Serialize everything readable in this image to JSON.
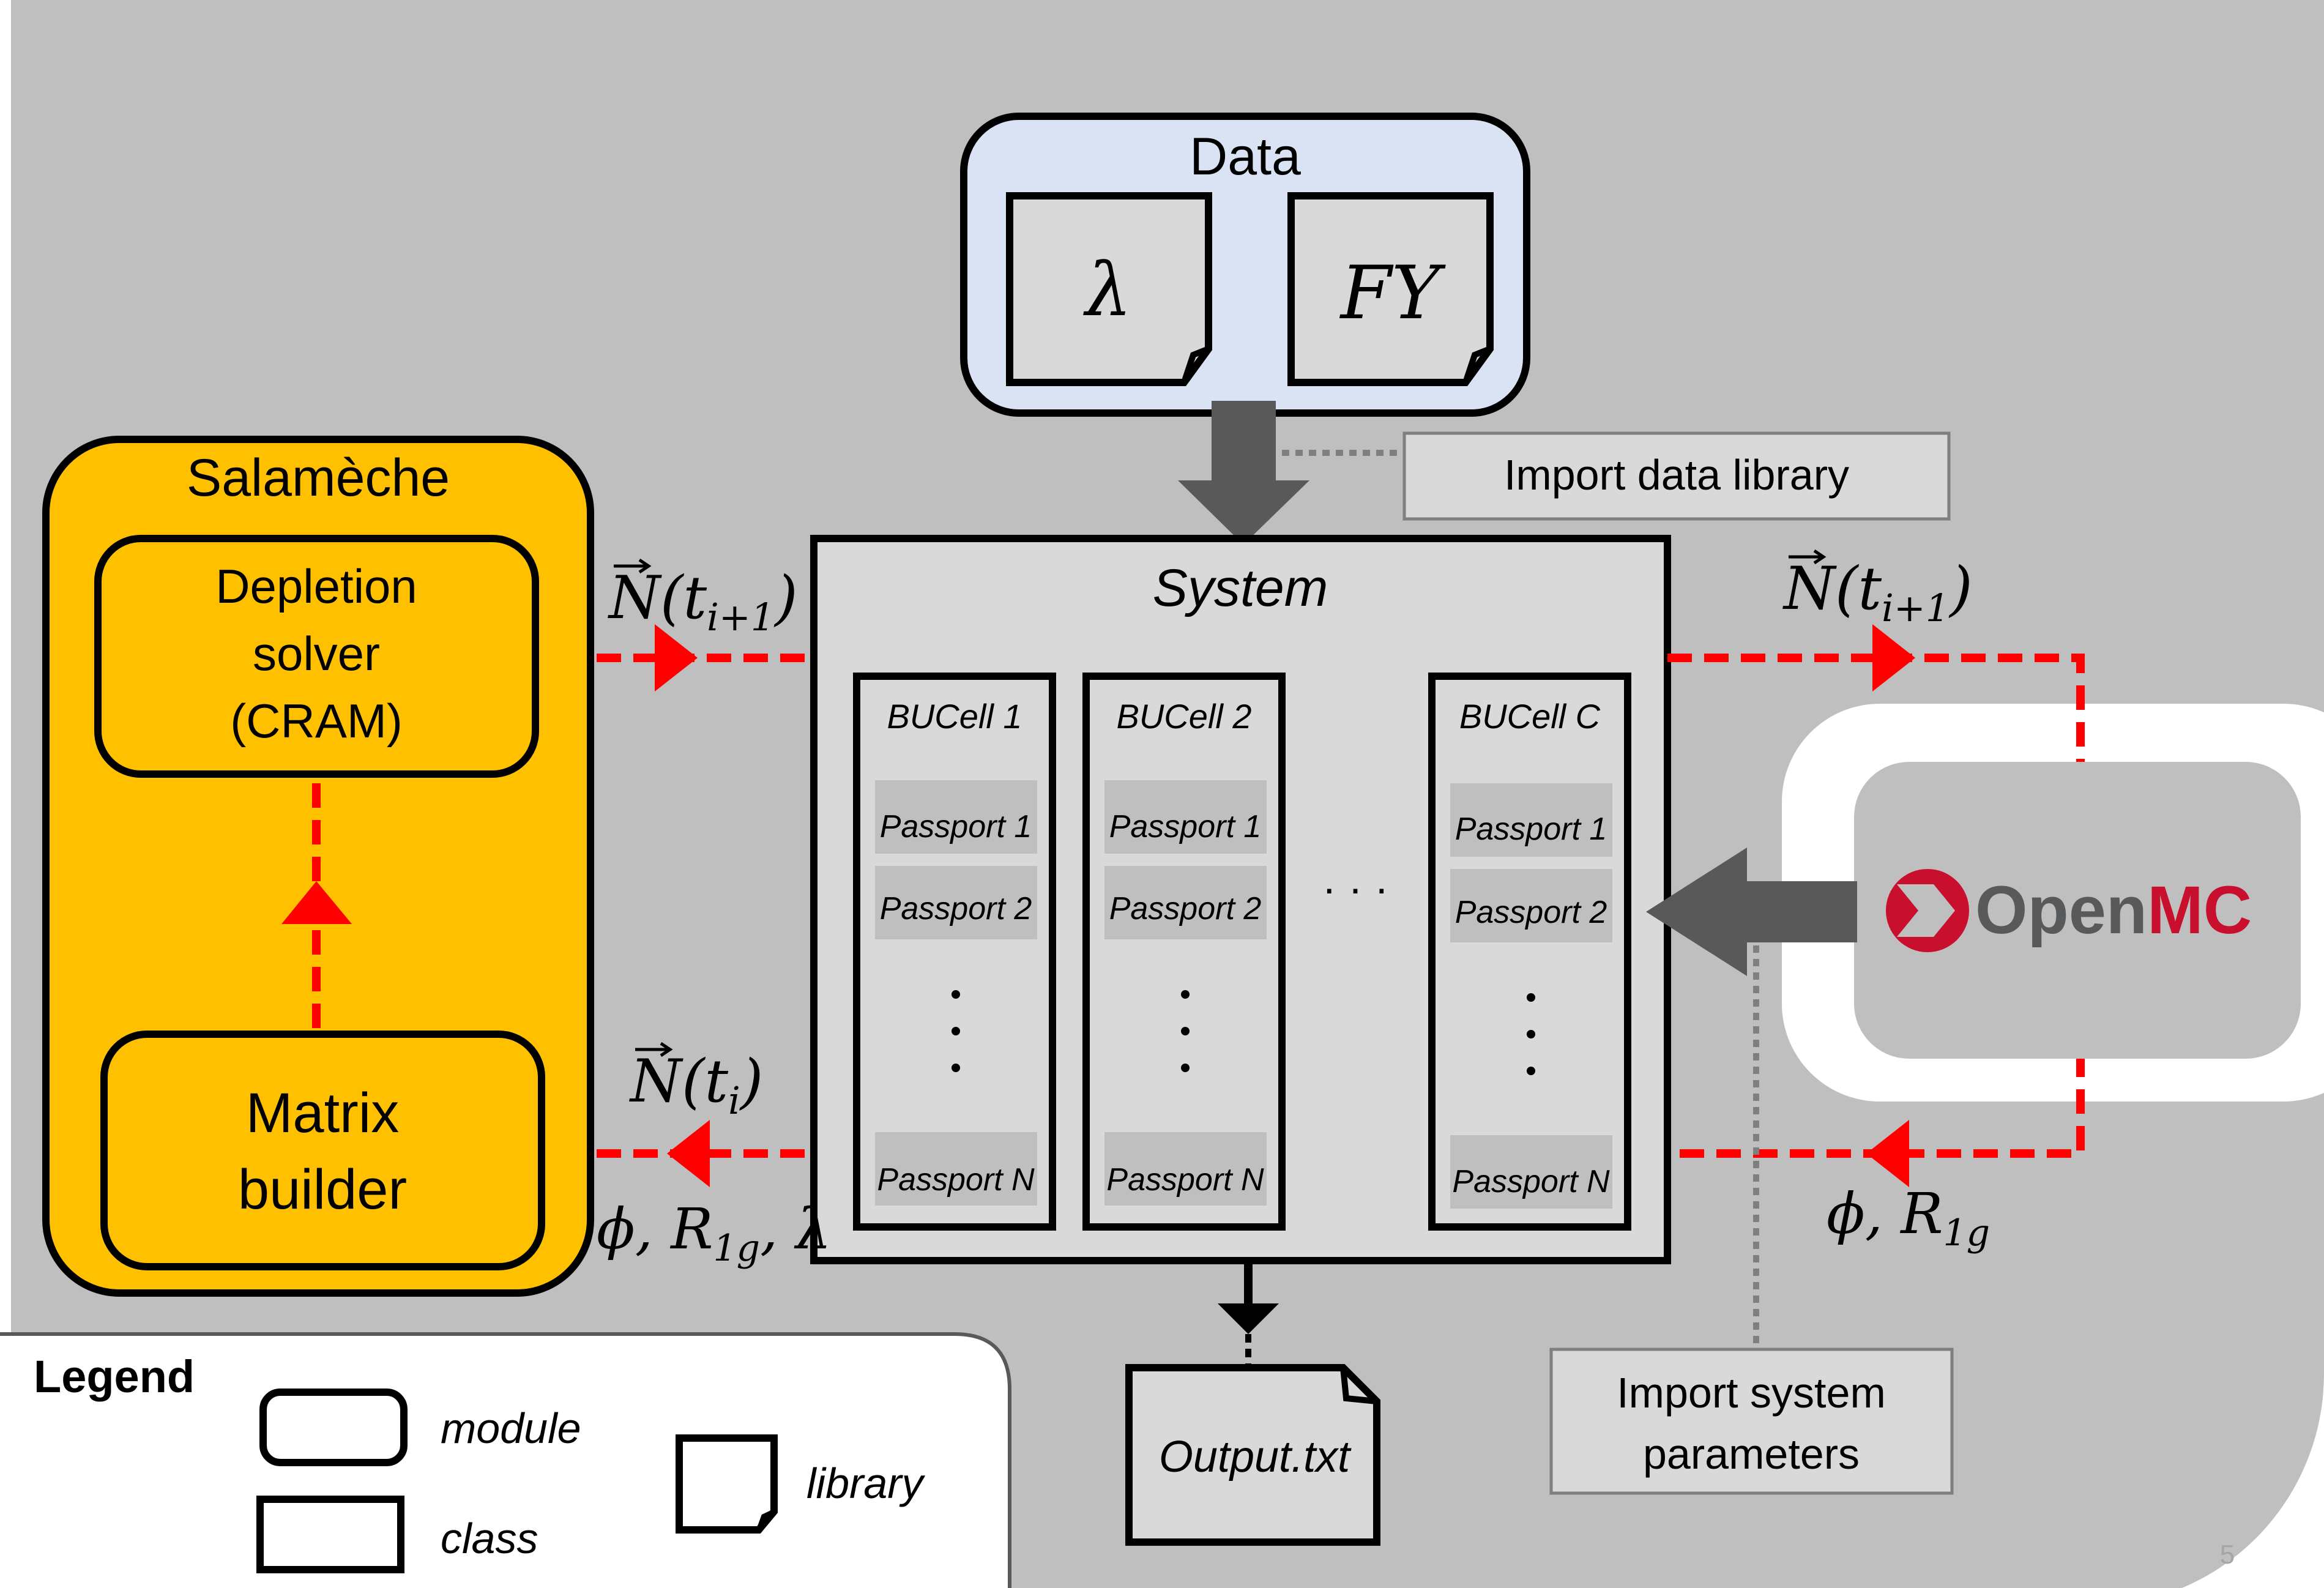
{
  "data_box": {
    "title": "Data",
    "lambda_symbol": "λ",
    "fy_label": "FY"
  },
  "import_data_library": "Import data library",
  "salameche": {
    "title": "Salamèche",
    "depletion_solver": [
      "Depletion",
      "solver",
      "(CRAM)"
    ],
    "matrix_builder": [
      "Matrix",
      "builder"
    ]
  },
  "system": {
    "title": "System",
    "bucells": [
      {
        "name": "BUCell 1",
        "passports": [
          "Passport 1",
          "Passport 2",
          "Passport N"
        ]
      },
      {
        "name": "BUCell 2",
        "passports": [
          "Passport 1",
          "Passport 2",
          "Passport N"
        ]
      },
      {
        "name": "BUCell C",
        "passports": [
          "Passport 1",
          "Passport 2",
          "Passport N"
        ]
      }
    ],
    "ellipsis": "· · ·"
  },
  "arrows": {
    "left_top": {
      "n": "N",
      "paren_open": "(t",
      "sub": "i+1",
      "paren_close": ")"
    },
    "left_bottom_n": {
      "n": "N",
      "paren_open": "(t",
      "sub": "i",
      "paren_close": ")"
    },
    "left_bottom_params": {
      "phi": "ϕ, R",
      "sub": "1g",
      "tail": ", λ"
    },
    "right_top": {
      "n": "N",
      "paren_open": "(t",
      "sub": "i+1",
      "paren_close": ")"
    },
    "right_bottom_params": {
      "phi": "ϕ, R",
      "sub": "1g"
    }
  },
  "openmc": {
    "open": "Open",
    "mc": "MC",
    "colors": {
      "open": "#58595b",
      "mc": "#c8102e"
    }
  },
  "output_file": "Output.txt",
  "import_system_parameters": [
    "Import system",
    "parameters"
  ],
  "legend": {
    "title": "Legend",
    "module": "module",
    "class": "class",
    "library": "library"
  },
  "page_number": "5",
  "colors": {
    "background": "#bfbfbf",
    "salameche": "#ffc000",
    "data_box": "#dae3f3",
    "system": "#d9d9d9",
    "arrow_red": "#ff0000",
    "arrow_gray": "#595959"
  }
}
